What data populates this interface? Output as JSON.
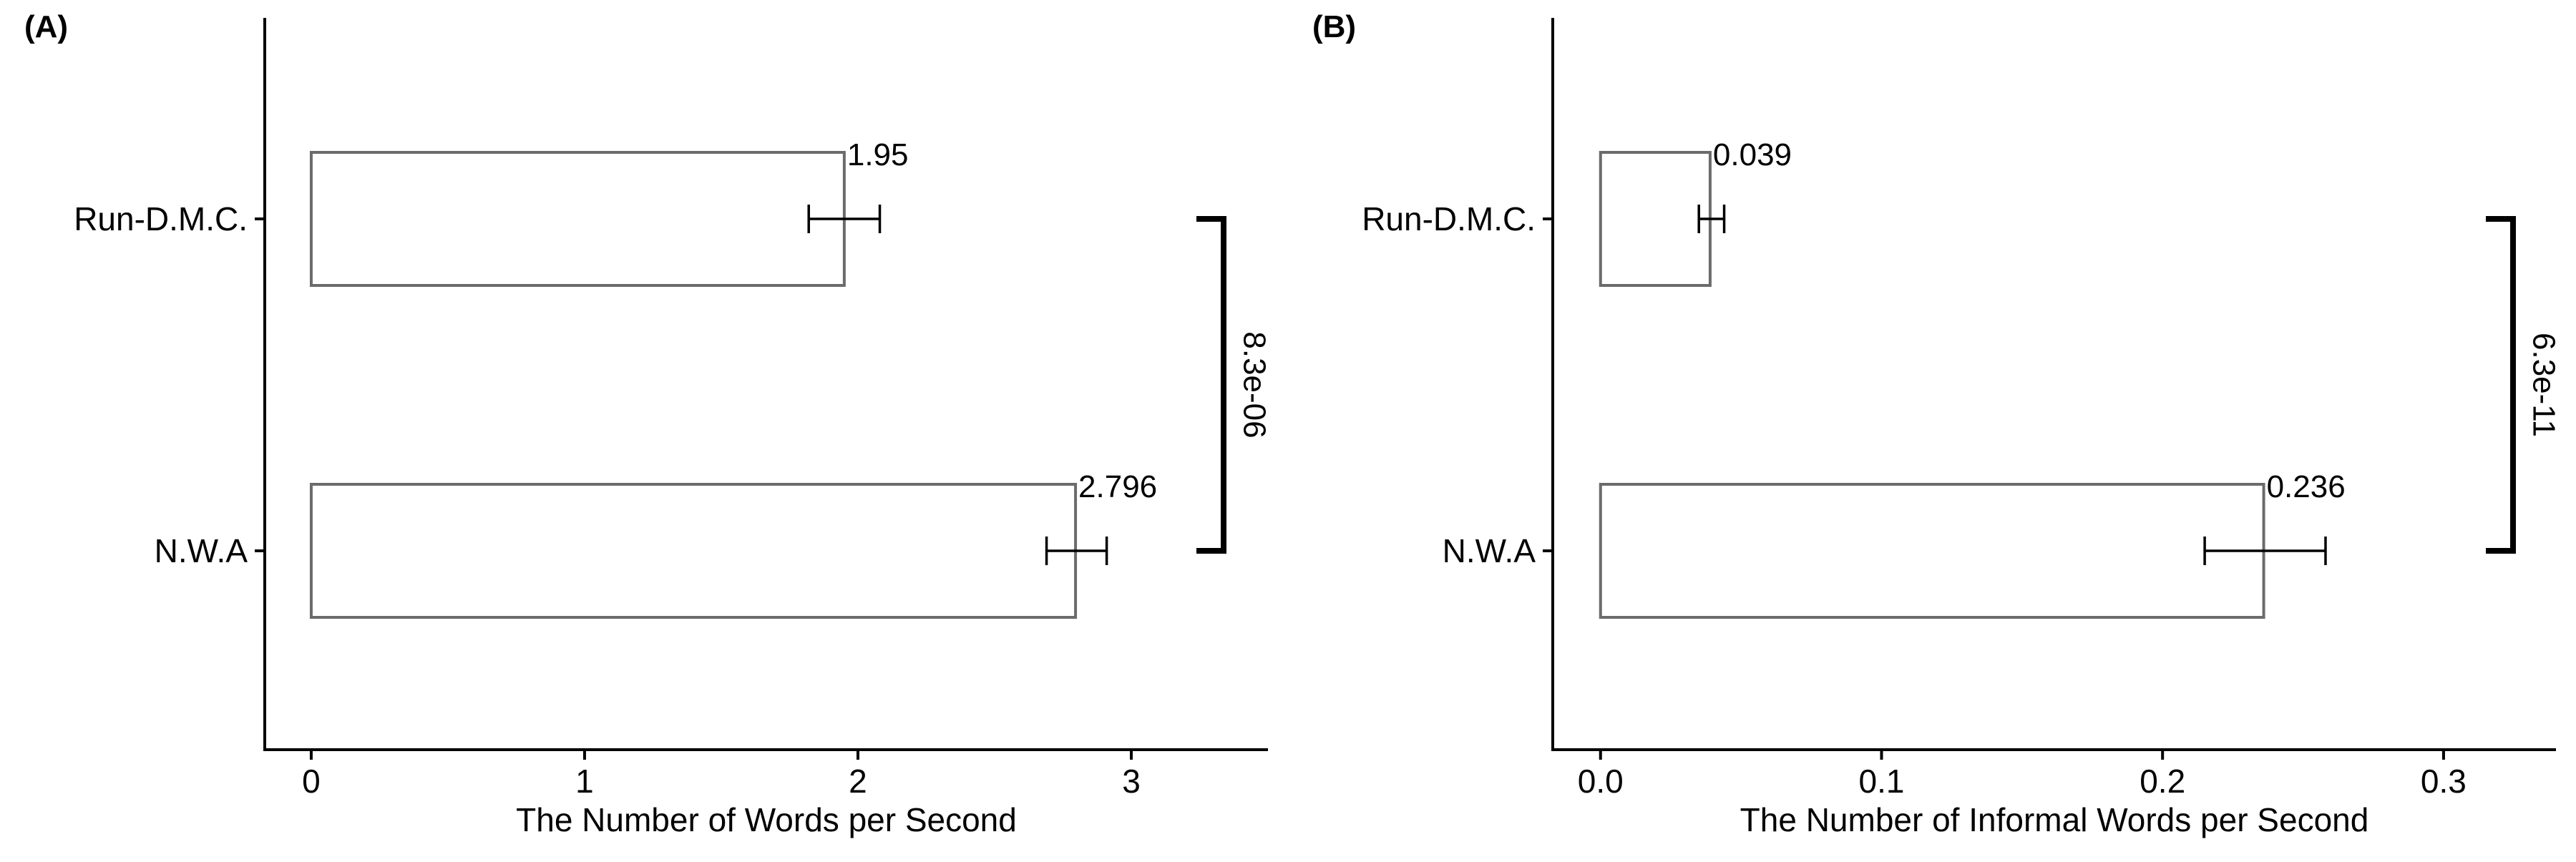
{
  "chart_data": [
    {
      "type": "bar",
      "orientation": "horizontal",
      "panel_label": "(A)",
      "categories": [
        "Run-D.M.C.",
        "N.W.A"
      ],
      "values": [
        1.95,
        2.796
      ],
      "error_bars": [
        {
          "low": 1.82,
          "high": 2.08
        },
        {
          "low": 2.69,
          "high": 2.91
        }
      ],
      "data_labels": [
        "1.95",
        "2.796"
      ],
      "xlabel": "The Number of Words per Second",
      "ylabel": "",
      "xlim": [
        -0.17,
        3.5
      ],
      "xticks": [
        0,
        1,
        2,
        3
      ],
      "xtick_labels": [
        "0",
        "1",
        "2",
        "3"
      ],
      "significance": {
        "label": "8.3e-06",
        "between": [
          "Run-D.M.C.",
          "N.W.A"
        ]
      },
      "grid": false,
      "legend": "none",
      "bar_fill": "#ffffff",
      "bar_stroke": "#6b6b6b"
    },
    {
      "type": "bar",
      "orientation": "horizontal",
      "panel_label": "(B)",
      "categories": [
        "Run-D.M.C.",
        "N.W.A"
      ],
      "values": [
        0.039,
        0.236
      ],
      "error_bars": [
        {
          "low": 0.035,
          "high": 0.044
        },
        {
          "low": 0.215,
          "high": 0.258
        }
      ],
      "data_labels": [
        "0.039",
        "0.236"
      ],
      "xlabel": "The Number of Informal Words per Second",
      "ylabel": "",
      "xlim": [
        -0.017,
        0.34
      ],
      "xticks": [
        0.0,
        0.1,
        0.2,
        0.3
      ],
      "xtick_labels": [
        "0.0",
        "0.1",
        "0.2",
        "0.3"
      ],
      "significance": {
        "label": "6.3e-11",
        "between": [
          "Run-D.M.C.",
          "N.W.A"
        ]
      },
      "grid": false,
      "legend": "none",
      "bar_fill": "#ffffff",
      "bar_stroke": "#6b6b6b"
    }
  ]
}
